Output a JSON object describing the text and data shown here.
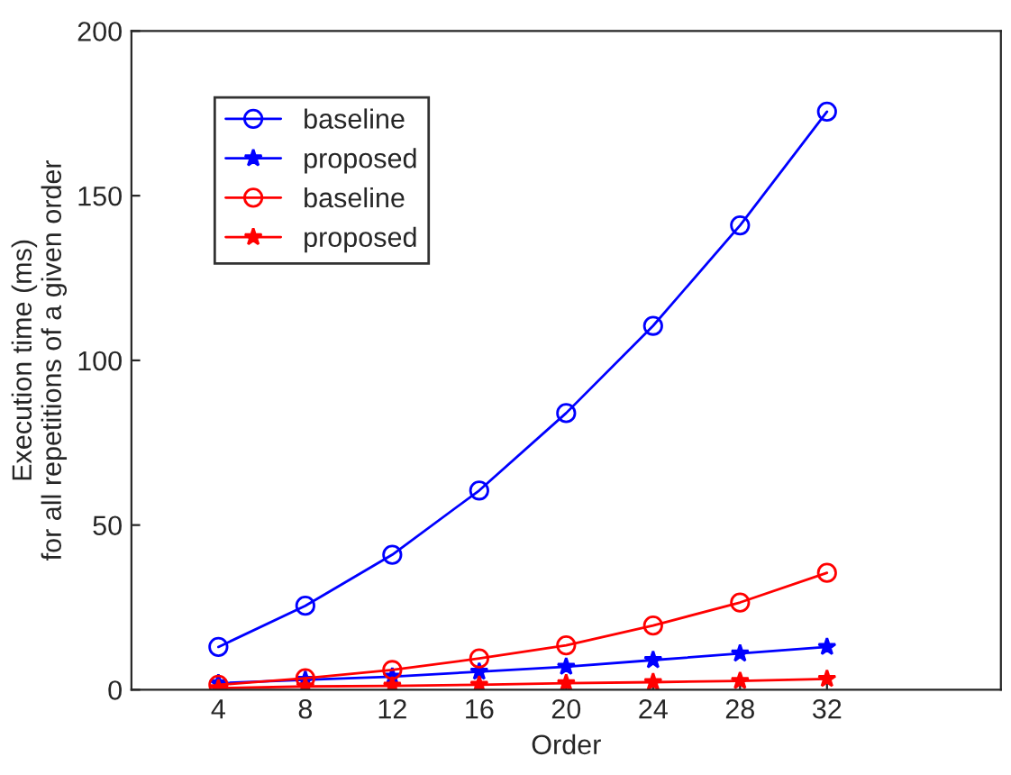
{
  "chart_data": {
    "type": "line",
    "xlabel": "Order",
    "ylabel": "Execution time (ms)\nfor all repetitions of a given order",
    "x": [
      4,
      8,
      12,
      16,
      20,
      24,
      28,
      32
    ],
    "xlim": [
      0,
      40
    ],
    "xticks": [
      4,
      8,
      12,
      16,
      20,
      24,
      28,
      32
    ],
    "ylim": [
      0,
      200
    ],
    "yticks": [
      0,
      50,
      100,
      150,
      200
    ],
    "grid": false,
    "legend": "top left",
    "line_style": "solid",
    "series": [
      {
        "name": "baseline",
        "color": "#0000ff",
        "marker": "circle",
        "values": [
          13,
          25.5,
          41,
          60.5,
          84,
          110.5,
          141,
          175.5
        ]
      },
      {
        "name": "proposed",
        "color": "#0000ff",
        "marker": "star",
        "values": [
          2,
          3,
          4,
          5.5,
          7,
          9,
          11,
          13
        ]
      },
      {
        "name": "baseline",
        "color": "#ff0000",
        "marker": "circle",
        "values": [
          1.5,
          3.5,
          6,
          9.5,
          13.5,
          19.5,
          26.5,
          35.5
        ]
      },
      {
        "name": "proposed",
        "color": "#ff0000",
        "marker": "star",
        "values": [
          0.5,
          1,
          1.2,
          1.5,
          2,
          2.3,
          2.7,
          3.3
        ]
      }
    ]
  }
}
